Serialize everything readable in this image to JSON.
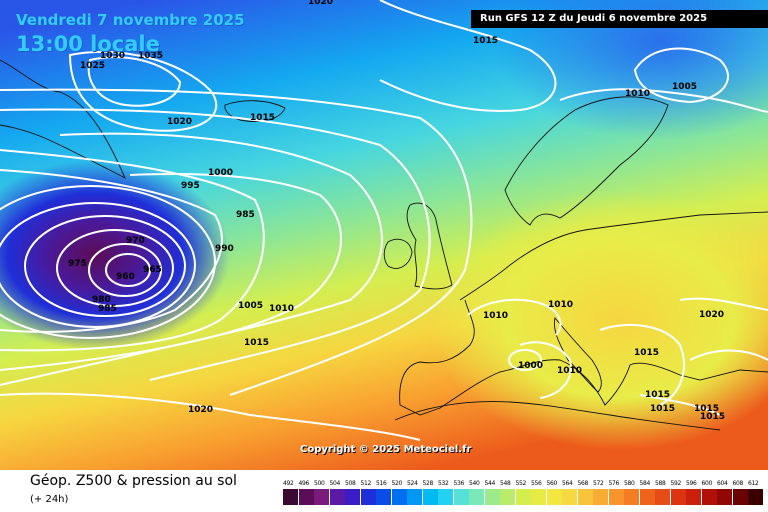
{
  "header": {
    "date": "Vendredi 7 novembre 2025",
    "time": "13:00 locale",
    "run": "Run GFS 12 Z du Jeudi 6 novembre 2025"
  },
  "copyright": "Copyright © 2025 Meteociel.fr",
  "footer": {
    "title": "Géop. Z500 & pression au sol",
    "subtitle": "(+ 24h)"
  },
  "legend": {
    "values": [
      "492",
      "496",
      "500",
      "504",
      "508",
      "512",
      "516",
      "520",
      "524",
      "528",
      "532",
      "536",
      "540",
      "544",
      "548",
      "552",
      "556",
      "560",
      "564",
      "568",
      "572",
      "576",
      "580",
      "584",
      "588",
      "592",
      "596",
      "600",
      "604",
      "608",
      "612"
    ],
    "colors": [
      "#3a0a32",
      "#5c0d57",
      "#7a1a7a",
      "#5a1aa6",
      "#3b1dc8",
      "#1f2fd8",
      "#0a4ce8",
      "#0070f0",
      "#0098f2",
      "#00baf0",
      "#22d2f0",
      "#55e0d8",
      "#7ae8b8",
      "#9cea8c",
      "#b8ec6a",
      "#d4ee50",
      "#e6ec44",
      "#f2e640",
      "#f6d840",
      "#f8c43c",
      "#f8ac34",
      "#f8942c",
      "#f47c24",
      "#ee641c",
      "#e64c16",
      "#dc3410",
      "#cc200c",
      "#b01008",
      "#900806",
      "#6a0404",
      "#3a0000"
    ]
  },
  "isobars": {
    "labels": [
      "1020",
      "1015",
      "1030",
      "1035",
      "1025",
      "1020",
      "1015",
      "1010",
      "1005",
      "1000",
      "995",
      "985",
      "990",
      "970",
      "975",
      "960",
      "965",
      "980",
      "985",
      "1005",
      "1010",
      "1015",
      "1010",
      "1010",
      "1000",
      "1010",
      "1020",
      "1015",
      "1015",
      "1015",
      "1015",
      "1020",
      "1015"
    ]
  }
}
